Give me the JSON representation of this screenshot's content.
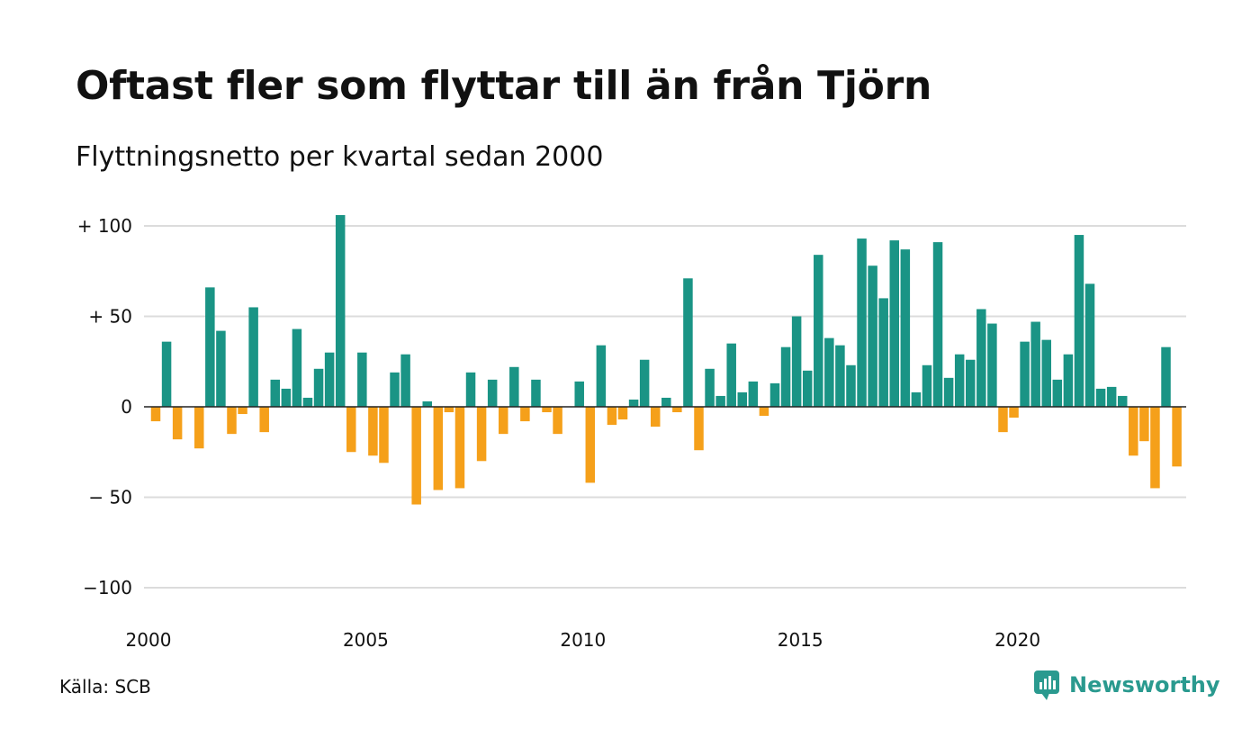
{
  "title": "Oftast fler som flyttar till än från Tjörn",
  "subtitle": "Flyttningsnetto per kvartal sedan 2000",
  "source": "Källa: SCB",
  "brand": "Newsworthy",
  "colors": {
    "positive": "#1a9485",
    "negative": "#f5a01a",
    "grid": "#dcdcdc",
    "brand": "#2a9a8f"
  },
  "chart_data": {
    "type": "bar",
    "x_start": "2000 Q1",
    "x_ticks": [
      "2000",
      "2005",
      "2010",
      "2015",
      "2020"
    ],
    "y_ticks": [
      "+ 100",
      "+  50",
      "0",
      "− 50",
      "−100"
    ],
    "y_tick_values": [
      100,
      50,
      0,
      -50,
      -100
    ],
    "ylim": [
      -110,
      110
    ],
    "grid": true,
    "values": [
      -8,
      36,
      -18,
      0,
      -23,
      66,
      42,
      -15,
      -4,
      55,
      -14,
      15,
      10,
      43,
      5,
      21,
      30,
      106,
      -25,
      30,
      -27,
      -31,
      19,
      29,
      -54,
      3,
      -46,
      -3,
      -45,
      19,
      -30,
      15,
      -15,
      22,
      -8,
      15,
      -3,
      -15,
      0,
      14,
      -42,
      34,
      -10,
      -7,
      4,
      26,
      -11,
      5,
      -3,
      71,
      -24,
      21,
      6,
      35,
      8,
      14,
      -5,
      13,
      33,
      50,
      20,
      84,
      38,
      34,
      23,
      93,
      78,
      60,
      92,
      87,
      8,
      23,
      91,
      16,
      29,
      26,
      54,
      46,
      -14,
      -6,
      36,
      47,
      37,
      15,
      29,
      95,
      68,
      10,
      11,
      6,
      -27,
      -19,
      -45,
      33,
      -33
    ]
  }
}
